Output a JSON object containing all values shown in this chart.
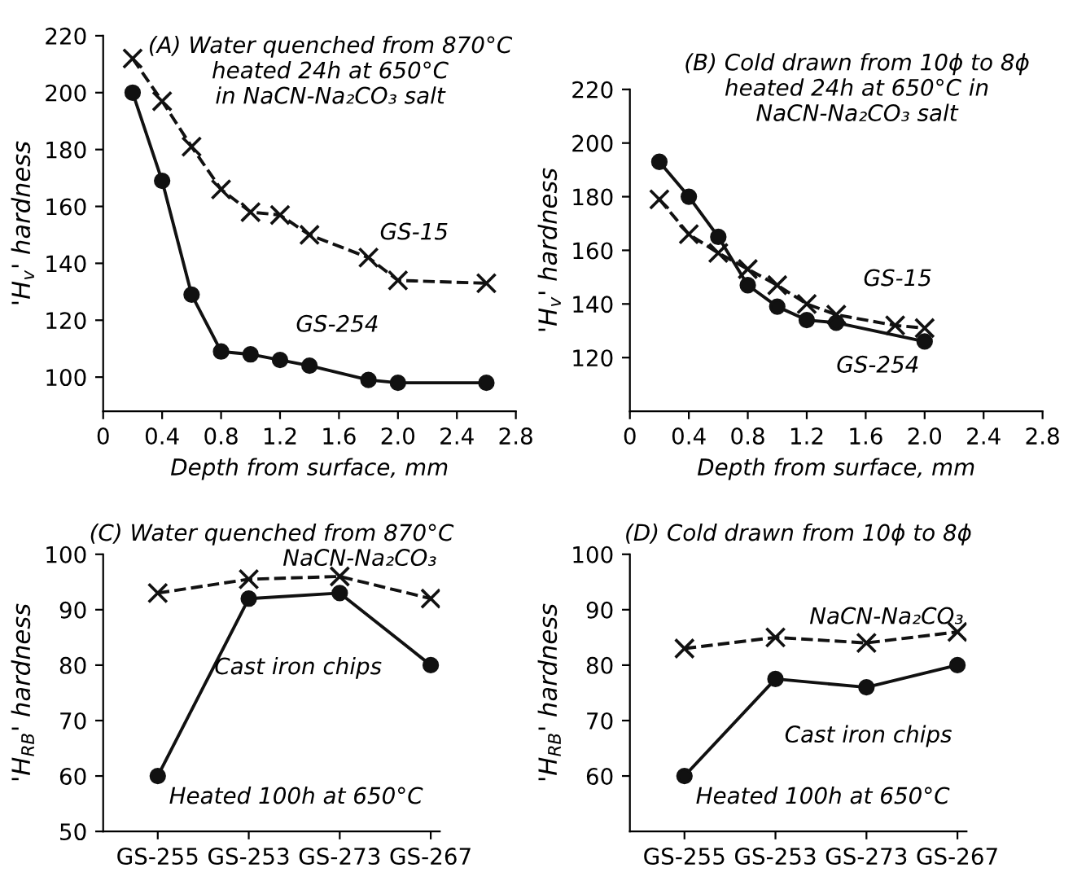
{
  "chart_data": [
    {
      "type": "line",
      "title": "(A) Water quenched from 870°C\nheated 24h at 650°C\nin NaCN-Na₂CO₃ salt",
      "xlabel": "Depth from surface, mm",
      "ylabel": "'H$_{v}$' hardness",
      "xlim": [
        0,
        2.8
      ],
      "xticks": [
        0,
        0.4,
        0.8,
        1.2,
        1.6,
        {
          "value": 2,
          "label": "2.0"
        },
        2.4,
        2.8
      ],
      "ylim": [
        88,
        220
      ],
      "yticks": [
        100,
        120,
        140,
        160,
        180,
        200,
        220
      ],
      "grid": false,
      "legend": false,
      "series": [
        {
          "name": "GS-15",
          "color": "#111111",
          "marker": "cross",
          "line_style": "dashed",
          "x": [
            0.2,
            0.4,
            0.6,
            0.8,
            1.0,
            1.2,
            1.4,
            1.8,
            2.0,
            2.6
          ],
          "values": [
            212,
            197,
            181,
            166,
            158,
            157,
            150,
            142,
            134,
            133
          ]
        },
        {
          "name": "GS-254",
          "color": "#111111",
          "marker": "circle",
          "line_style": "solid",
          "x": [
            0.2,
            0.4,
            0.6,
            0.8,
            1.0,
            1.2,
            1.4,
            1.8,
            2.0,
            2.6
          ],
          "values": [
            200,
            169,
            129,
            109,
            108,
            106,
            104,
            99,
            98,
            98
          ]
        }
      ]
    },
    {
      "type": "line",
      "title": "(B) Cold drawn from 10ϕ to 8ϕ\nheated 24h at 650°C in\nNaCN-Na₂CO₃ salt",
      "xlabel": "Depth from surface, mm",
      "ylabel": "'H$_{v}$' hardness",
      "xlim": [
        0,
        2.8
      ],
      "xticks": [
        0,
        0.4,
        0.8,
        1.2,
        1.6,
        {
          "value": 2,
          "label": "2.0"
        },
        2.4,
        2.8
      ],
      "ylim": [
        100,
        220
      ],
      "yticks": [
        120,
        140,
        160,
        180,
        200,
        220
      ],
      "grid": false,
      "legend": false,
      "series": [
        {
          "name": "GS-15",
          "color": "#111111",
          "marker": "cross",
          "line_style": "dashed",
          "x": [
            0.2,
            0.4,
            0.6,
            0.8,
            1.0,
            1.2,
            1.4,
            1.8,
            2.0
          ],
          "values": [
            179,
            166,
            159,
            153,
            147,
            140,
            136,
            132,
            131
          ]
        },
        {
          "name": "GS-254",
          "color": "#111111",
          "marker": "circle",
          "line_style": "solid",
          "x": [
            0.2,
            0.4,
            0.6,
            0.8,
            1.0,
            1.2,
            1.4,
            2.0
          ],
          "values": [
            193,
            180,
            165,
            147,
            139,
            134,
            133,
            126
          ]
        }
      ]
    },
    {
      "type": "line",
      "title": "(C) Water quenched from 870°C",
      "ylabel": "'H$_{RB}$' hardness",
      "categories": [
        "GS-255",
        "GS-253",
        "GS-273",
        "GS-267"
      ],
      "ylim": [
        50,
        100
      ],
      "yticks": [
        50,
        60,
        70,
        80,
        90,
        100
      ],
      "grid": false,
      "legend": false,
      "annotations": [
        "Heated 100h at 650°C"
      ],
      "series": [
        {
          "name": "NaCN-Na₂CO₃",
          "color": "#111111",
          "marker": "cross",
          "line_style": "dashed",
          "values": [
            93,
            95.5,
            96,
            92
          ]
        },
        {
          "name": "Cast iron chips",
          "color": "#111111",
          "marker": "circle",
          "line_style": "solid",
          "values": [
            60,
            92,
            93,
            80
          ]
        }
      ]
    },
    {
      "type": "line",
      "title": "(D) Cold drawn from 10ϕ to 8ϕ",
      "ylabel": "'H$_{RB}$' hardness",
      "categories": [
        "GS-255",
        "GS-253",
        "GS-273",
        "GS-267"
      ],
      "ylim": [
        50,
        100
      ],
      "yticks": [
        60,
        70,
        80,
        90,
        100
      ],
      "grid": false,
      "legend": false,
      "annotations": [
        "Heated 100h at 650°C"
      ],
      "series": [
        {
          "name": "NaCN-Na₂CO₃",
          "color": "#111111",
          "marker": "cross",
          "line_style": "dashed",
          "values": [
            83,
            85,
            84,
            86
          ]
        },
        {
          "name": "Cast iron chips",
          "color": "#111111",
          "marker": "circle",
          "line_style": "solid",
          "values": [
            60,
            77.5,
            76,
            80
          ]
        }
      ]
    }
  ]
}
